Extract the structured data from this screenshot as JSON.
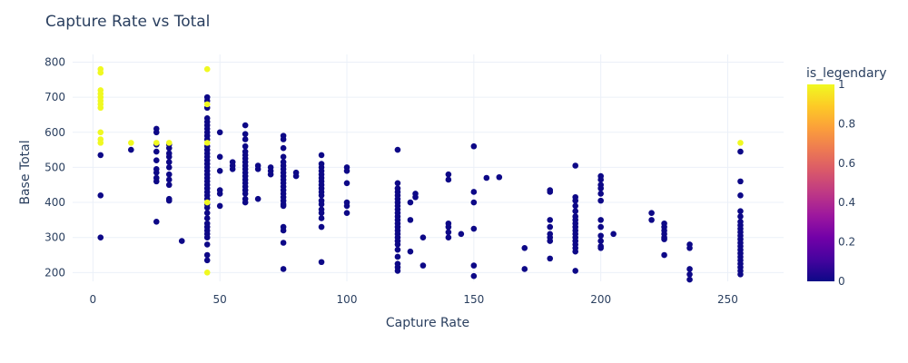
{
  "chart_data": {
    "type": "scatter",
    "title": "Capture Rate vs Total",
    "xlabel": "Capture Rate",
    "ylabel": "Base Total",
    "xlim": [
      -8,
      272
    ],
    "ylim": [
      175,
      822
    ],
    "xticks": [
      0,
      50,
      100,
      150,
      200,
      250
    ],
    "yticks": [
      200,
      300,
      400,
      500,
      600,
      700,
      800
    ],
    "grid": true,
    "colorbar": {
      "title": "is_legendary",
      "ticks": [
        "0",
        "0.2",
        "0.4",
        "0.6",
        "0.8",
        "1"
      ],
      "range": [
        0,
        1
      ],
      "colors": [
        "#0d0887",
        "#46039f",
        "#7201a8",
        "#9c179e",
        "#bd3786",
        "#d8576b",
        "#ed7953",
        "#fb9f3a",
        "#fdca26",
        "#f0f921"
      ]
    },
    "series": [
      {
        "is_legendary": 0,
        "color": "#0d0887",
        "points": [
          [
            3,
            535
          ],
          [
            3,
            420
          ],
          [
            3,
            300
          ],
          [
            15,
            550
          ],
          [
            25,
            610
          ],
          [
            25,
            600
          ],
          [
            25,
            565
          ],
          [
            25,
            545
          ],
          [
            25,
            520
          ],
          [
            25,
            495
          ],
          [
            25,
            485
          ],
          [
            25,
            470
          ],
          [
            25,
            460
          ],
          [
            25,
            345
          ],
          [
            30,
            565
          ],
          [
            30,
            555
          ],
          [
            30,
            540
          ],
          [
            30,
            530
          ],
          [
            30,
            515
          ],
          [
            30,
            500
          ],
          [
            30,
            480
          ],
          [
            30,
            465
          ],
          [
            30,
            450
          ],
          [
            30,
            410
          ],
          [
            30,
            405
          ],
          [
            35,
            290
          ],
          [
            45,
            700
          ],
          [
            45,
            690
          ],
          [
            45,
            670
          ],
          [
            45,
            640
          ],
          [
            45,
            630
          ],
          [
            45,
            620
          ],
          [
            45,
            610
          ],
          [
            45,
            600
          ],
          [
            45,
            590
          ],
          [
            45,
            580
          ],
          [
            45,
            560
          ],
          [
            45,
            550
          ],
          [
            45,
            540
          ],
          [
            45,
            530
          ],
          [
            45,
            520
          ],
          [
            45,
            510
          ],
          [
            45,
            500
          ],
          [
            45,
            490
          ],
          [
            45,
            480
          ],
          [
            45,
            470
          ],
          [
            45,
            460
          ],
          [
            45,
            450
          ],
          [
            45,
            440
          ],
          [
            45,
            430
          ],
          [
            45,
            420
          ],
          [
            45,
            410
          ],
          [
            45,
            395
          ],
          [
            45,
            385
          ],
          [
            45,
            370
          ],
          [
            45,
            355
          ],
          [
            45,
            340
          ],
          [
            45,
            330
          ],
          [
            45,
            320
          ],
          [
            45,
            310
          ],
          [
            45,
            300
          ],
          [
            45,
            280
          ],
          [
            45,
            250
          ],
          [
            45,
            235
          ],
          [
            50,
            600
          ],
          [
            50,
            530
          ],
          [
            50,
            490
          ],
          [
            50,
            435
          ],
          [
            50,
            425
          ],
          [
            50,
            390
          ],
          [
            55,
            515
          ],
          [
            55,
            505
          ],
          [
            55,
            495
          ],
          [
            60,
            620
          ],
          [
            60,
            595
          ],
          [
            60,
            580
          ],
          [
            60,
            560
          ],
          [
            60,
            545
          ],
          [
            60,
            535
          ],
          [
            60,
            525
          ],
          [
            60,
            515
          ],
          [
            60,
            505
          ],
          [
            60,
            495
          ],
          [
            60,
            485
          ],
          [
            60,
            475
          ],
          [
            60,
            465
          ],
          [
            60,
            455
          ],
          [
            60,
            445
          ],
          [
            60,
            435
          ],
          [
            60,
            425
          ],
          [
            60,
            410
          ],
          [
            60,
            400
          ],
          [
            65,
            505
          ],
          [
            65,
            495
          ],
          [
            65,
            410
          ],
          [
            70,
            500
          ],
          [
            70,
            490
          ],
          [
            70,
            480
          ],
          [
            75,
            590
          ],
          [
            75,
            580
          ],
          [
            75,
            555
          ],
          [
            75,
            530
          ],
          [
            75,
            515
          ],
          [
            75,
            505
          ],
          [
            75,
            495
          ],
          [
            75,
            485
          ],
          [
            75,
            475
          ],
          [
            75,
            465
          ],
          [
            75,
            455
          ],
          [
            75,
            445
          ],
          [
            75,
            435
          ],
          [
            75,
            425
          ],
          [
            75,
            415
          ],
          [
            75,
            405
          ],
          [
            75,
            395
          ],
          [
            75,
            390
          ],
          [
            75,
            330
          ],
          [
            75,
            320
          ],
          [
            75,
            285
          ],
          [
            75,
            210
          ],
          [
            80,
            485
          ],
          [
            80,
            475
          ],
          [
            90,
            535
          ],
          [
            90,
            510
          ],
          [
            90,
            500
          ],
          [
            90,
            490
          ],
          [
            90,
            480
          ],
          [
            90,
            470
          ],
          [
            90,
            460
          ],
          [
            90,
            450
          ],
          [
            90,
            440
          ],
          [
            90,
            430
          ],
          [
            90,
            420
          ],
          [
            90,
            405
          ],
          [
            90,
            395
          ],
          [
            90,
            380
          ],
          [
            90,
            370
          ],
          [
            90,
            355
          ],
          [
            90,
            330
          ],
          [
            90,
            230
          ],
          [
            100,
            500
          ],
          [
            100,
            490
          ],
          [
            100,
            455
          ],
          [
            100,
            400
          ],
          [
            100,
            390
          ],
          [
            100,
            370
          ],
          [
            120,
            550
          ],
          [
            120,
            455
          ],
          [
            120,
            440
          ],
          [
            120,
            430
          ],
          [
            120,
            420
          ],
          [
            120,
            410
          ],
          [
            120,
            400
          ],
          [
            120,
            390
          ],
          [
            120,
            380
          ],
          [
            120,
            370
          ],
          [
            120,
            360
          ],
          [
            120,
            350
          ],
          [
            120,
            340
          ],
          [
            120,
            330
          ],
          [
            120,
            320
          ],
          [
            120,
            310
          ],
          [
            120,
            300
          ],
          [
            120,
            290
          ],
          [
            120,
            280
          ],
          [
            120,
            265
          ],
          [
            120,
            245
          ],
          [
            120,
            225
          ],
          [
            120,
            215
          ],
          [
            120,
            205
          ],
          [
            125,
            400
          ],
          [
            125,
            350
          ],
          [
            125,
            260
          ],
          [
            127,
            425
          ],
          [
            127,
            415
          ],
          [
            130,
            300
          ],
          [
            130,
            220
          ],
          [
            140,
            480
          ],
          [
            140,
            465
          ],
          [
            140,
            340
          ],
          [
            140,
            330
          ],
          [
            140,
            315
          ],
          [
            140,
            300
          ],
          [
            145,
            310
          ],
          [
            150,
            560
          ],
          [
            150,
            430
          ],
          [
            150,
            400
          ],
          [
            150,
            325
          ],
          [
            150,
            220
          ],
          [
            150,
            190
          ],
          [
            155,
            470
          ],
          [
            160,
            472
          ],
          [
            170,
            270
          ],
          [
            170,
            210
          ],
          [
            180,
            435
          ],
          [
            180,
            430
          ],
          [
            180,
            350
          ],
          [
            180,
            330
          ],
          [
            180,
            310
          ],
          [
            180,
            300
          ],
          [
            180,
            290
          ],
          [
            180,
            240
          ],
          [
            190,
            505
          ],
          [
            190,
            415
          ],
          [
            190,
            405
          ],
          [
            190,
            390
          ],
          [
            190,
            375
          ],
          [
            190,
            360
          ],
          [
            190,
            350
          ],
          [
            190,
            340
          ],
          [
            190,
            330
          ],
          [
            190,
            320
          ],
          [
            190,
            310
          ],
          [
            190,
            300
          ],
          [
            190,
            290
          ],
          [
            190,
            280
          ],
          [
            190,
            270
          ],
          [
            190,
            260
          ],
          [
            190,
            205
          ],
          [
            200,
            475
          ],
          [
            200,
            465
          ],
          [
            200,
            450
          ],
          [
            200,
            440
          ],
          [
            200,
            425
          ],
          [
            200,
            405
          ],
          [
            200,
            350
          ],
          [
            200,
            330
          ],
          [
            200,
            305
          ],
          [
            200,
            290
          ],
          [
            200,
            275
          ],
          [
            200,
            270
          ],
          [
            205,
            310
          ],
          [
            220,
            370
          ],
          [
            220,
            350
          ],
          [
            225,
            340
          ],
          [
            225,
            330
          ],
          [
            225,
            320
          ],
          [
            225,
            310
          ],
          [
            225,
            300
          ],
          [
            225,
            295
          ],
          [
            225,
            250
          ],
          [
            235,
            280
          ],
          [
            235,
            270
          ],
          [
            235,
            210
          ],
          [
            235,
            195
          ],
          [
            235,
            180
          ],
          [
            255,
            545
          ],
          [
            255,
            460
          ],
          [
            255,
            420
          ],
          [
            255,
            375
          ],
          [
            255,
            360
          ],
          [
            255,
            345
          ],
          [
            255,
            335
          ],
          [
            255,
            325
          ],
          [
            255,
            315
          ],
          [
            255,
            305
          ],
          [
            255,
            295
          ],
          [
            255,
            285
          ],
          [
            255,
            275
          ],
          [
            255,
            265
          ],
          [
            255,
            255
          ],
          [
            255,
            245
          ],
          [
            255,
            235
          ],
          [
            255,
            225
          ],
          [
            255,
            215
          ],
          [
            255,
            205
          ],
          [
            255,
            195
          ]
        ]
      },
      {
        "is_legendary": 1,
        "color": "#f0f921",
        "points": [
          [
            3,
            780
          ],
          [
            3,
            770
          ],
          [
            3,
            720
          ],
          [
            3,
            710
          ],
          [
            3,
            700
          ],
          [
            3,
            690
          ],
          [
            3,
            680
          ],
          [
            3,
            670
          ],
          [
            3,
            600
          ],
          [
            3,
            580
          ],
          [
            3,
            570
          ],
          [
            15,
            570
          ],
          [
            25,
            570
          ],
          [
            30,
            570
          ],
          [
            45,
            780
          ],
          [
            45,
            680
          ],
          [
            45,
            570
          ],
          [
            45,
            400
          ],
          [
            45,
            200
          ],
          [
            255,
            570
          ]
        ]
      }
    ]
  }
}
